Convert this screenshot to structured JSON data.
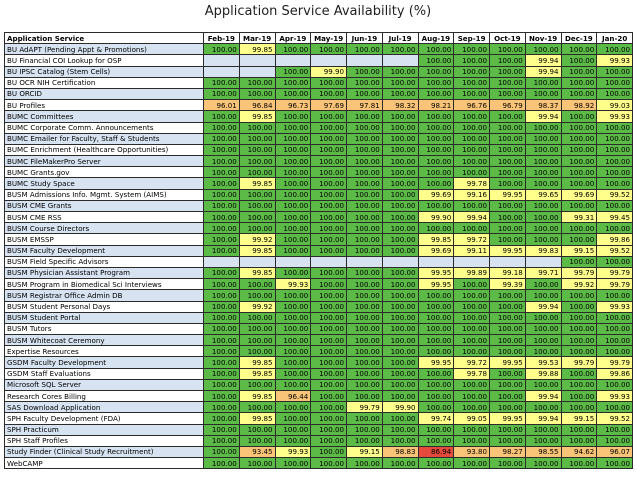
{
  "title": "Application Service Availability (%)",
  "colors": {
    "green": "#5cba47",
    "yellow": "#ffff8c",
    "orange": "#f9c478",
    "red": "#e64a3c",
    "blank": "#d7e3f1"
  },
  "columns": [
    "Application Service",
    "Feb-19",
    "Mar-19",
    "Apr-19",
    "May-19",
    "Jun-19",
    "Jul-19",
    "Aug-19",
    "Sep-19",
    "Oct-19",
    "Nov-19",
    "Dec-19",
    "Jan-20"
  ],
  "rows": [
    {
      "name": "BU AdAPT (Pending Appt & Promotions)",
      "values": [
        "100.00",
        "99.85",
        "100.00",
        "100.00",
        "100.00",
        "100.00",
        "100.00",
        "100.00",
        "100.00",
        "100.00",
        "100.00",
        "100.00"
      ]
    },
    {
      "name": "BU Financial COI Lookup for OSP",
      "values": [
        "",
        "",
        "",
        "",
        "",
        "",
        "100.00",
        "100.00",
        "100.00",
        "99.94",
        "100.00",
        "99.93"
      ]
    },
    {
      "name": "BU IPSC Catalog (Stem Cells)",
      "values": [
        "",
        "",
        "100.00",
        "99.90",
        "100.00",
        "100.00",
        "100.00",
        "100.00",
        "100.00",
        "99.94",
        "100.00",
        "100.00"
      ]
    },
    {
      "name": "BU OCR NIH Certification",
      "values": [
        "100.00",
        "100.00",
        "100.00",
        "100.00",
        "100.00",
        "100.00",
        "100.00",
        "100.00",
        "100.00",
        "100.00",
        "100.00",
        "100.00"
      ]
    },
    {
      "name": "BU ORCID",
      "values": [
        "100.00",
        "100.00",
        "100.00",
        "100.00",
        "100.00",
        "100.00",
        "100.00",
        "100.00",
        "100.00",
        "100.00",
        "100.00",
        "100.00"
      ]
    },
    {
      "name": "BU Profiles",
      "values": [
        "96.01",
        "96.84",
        "96.73",
        "97.69",
        "97.81",
        "98.32",
        "98.21",
        "96.76",
        "96.79",
        "98.37",
        "98.92",
        "99.03"
      ]
    },
    {
      "name": "BUMC Committees",
      "values": [
        "100.00",
        "99.85",
        "100.00",
        "100.00",
        "100.00",
        "100.00",
        "100.00",
        "100.00",
        "100.00",
        "99.94",
        "100.00",
        "99.93"
      ]
    },
    {
      "name": "BUMC Corporate Comm. Announcements",
      "values": [
        "100.00",
        "100.00",
        "100.00",
        "100.00",
        "100.00",
        "100.00",
        "100.00",
        "100.00",
        "100.00",
        "100.00",
        "100.00",
        "100.00"
      ]
    },
    {
      "name": "BUMC Emailer for Faculty, Staff & Students",
      "values": [
        "100.00",
        "100.00",
        "100.00",
        "100.00",
        "100.00",
        "100.00",
        "100.00",
        "100.00",
        "100.00",
        "100.00",
        "100.00",
        "100.00"
      ]
    },
    {
      "name": "BUMC Enrichment (Healthcare Opportunities)",
      "values": [
        "100.00",
        "100.00",
        "100.00",
        "100.00",
        "100.00",
        "100.00",
        "100.00",
        "100.00",
        "100.00",
        "100.00",
        "100.00",
        "100.00"
      ]
    },
    {
      "name": "BUMC FileMakerPro Server",
      "values": [
        "100.00",
        "100.00",
        "100.00",
        "100.00",
        "100.00",
        "100.00",
        "100.00",
        "100.00",
        "100.00",
        "100.00",
        "100.00",
        "100.00"
      ]
    },
    {
      "name": "BUMC Grants.gov",
      "values": [
        "100.00",
        "100.00",
        "100.00",
        "100.00",
        "100.00",
        "100.00",
        "100.00",
        "100.00",
        "100.00",
        "100.00",
        "100.00",
        "100.00"
      ]
    },
    {
      "name": "BUMC Study Space",
      "values": [
        "100.00",
        "99.85",
        "100.00",
        "100.00",
        "100.00",
        "100.00",
        "100.00",
        "99.78",
        "100.00",
        "100.00",
        "100.00",
        "100.00"
      ]
    },
    {
      "name": "BUSM Admissions Info. Mgmt. System (AIMS)",
      "values": [
        "100.00",
        "100.00",
        "100.00",
        "100.00",
        "100.00",
        "100.00",
        "99.69",
        "99.16",
        "99.95",
        "99.65",
        "99.69",
        "99.52"
      ]
    },
    {
      "name": "BUSM CME Grants",
      "values": [
        "100.00",
        "100.00",
        "100.00",
        "100.00",
        "100.00",
        "100.00",
        "100.00",
        "100.00",
        "100.00",
        "100.00",
        "100.00",
        "100.00"
      ]
    },
    {
      "name": "BUSM CME RSS",
      "values": [
        "100.00",
        "100.00",
        "100.00",
        "100.00",
        "100.00",
        "100.00",
        "99.90",
        "99.94",
        "100.00",
        "100.00",
        "99.31",
        "99.45"
      ]
    },
    {
      "name": "BUSM Course Directors",
      "values": [
        "100.00",
        "100.00",
        "100.00",
        "100.00",
        "100.00",
        "100.00",
        "100.00",
        "100.00",
        "100.00",
        "100.00",
        "100.00",
        "100.00"
      ]
    },
    {
      "name": "BUSM EMSSP",
      "values": [
        "100.00",
        "99.92",
        "100.00",
        "100.00",
        "100.00",
        "100.00",
        "99.85",
        "99.72",
        "100.00",
        "100.00",
        "100.00",
        "99.86"
      ]
    },
    {
      "name": "BUSM Faculty Development",
      "values": [
        "100.00",
        "99.85",
        "100.00",
        "100.00",
        "100.00",
        "100.00",
        "99.69",
        "99.11",
        "99.95",
        "99.83",
        "99.15",
        "99.52"
      ]
    },
    {
      "name": "BUSM Field Specific Advisors",
      "values": [
        "",
        "",
        "",
        "",
        "",
        "",
        "",
        "",
        "",
        "",
        "100.00",
        "100.00"
      ]
    },
    {
      "name": "BUSM Physician Assistant Program",
      "values": [
        "100.00",
        "99.85",
        "100.00",
        "100.00",
        "100.00",
        "100.00",
        "99.95",
        "99.89",
        "99.18",
        "99.71",
        "99.79",
        "99.79"
      ]
    },
    {
      "name": "BUSM Program in Biomedical Sci Interviews",
      "values": [
        "100.00",
        "100.00",
        "99.93",
        "100.00",
        "100.00",
        "100.00",
        "99.95",
        "100.00",
        "99.39",
        "100.00",
        "99.92",
        "99.79"
      ]
    },
    {
      "name": "BUSM Registrar Office Admin DB",
      "values": [
        "100.00",
        "100.00",
        "100.00",
        "100.00",
        "100.00",
        "100.00",
        "100.00",
        "100.00",
        "100.00",
        "100.00",
        "100.00",
        "100.00"
      ]
    },
    {
      "name": "BUSM Student Personal Days",
      "values": [
        "100.00",
        "99.92",
        "100.00",
        "100.00",
        "100.00",
        "100.00",
        "100.00",
        "100.00",
        "100.00",
        "99.94",
        "100.00",
        "99.93"
      ]
    },
    {
      "name": "BUSM Student Portal",
      "values": [
        "100.00",
        "100.00",
        "100.00",
        "100.00",
        "100.00",
        "100.00",
        "100.00",
        "100.00",
        "100.00",
        "100.00",
        "100.00",
        "100.00"
      ]
    },
    {
      "name": "BUSM Tutors",
      "values": [
        "100.00",
        "100.00",
        "100.00",
        "100.00",
        "100.00",
        "100.00",
        "100.00",
        "100.00",
        "100.00",
        "100.00",
        "100.00",
        "100.00"
      ]
    },
    {
      "name": "BUSM Whitecoat Ceremony",
      "values": [
        "100.00",
        "100.00",
        "100.00",
        "100.00",
        "100.00",
        "100.00",
        "100.00",
        "100.00",
        "100.00",
        "100.00",
        "100.00",
        "100.00"
      ]
    },
    {
      "name": "Expertise Resources",
      "values": [
        "100.00",
        "100.00",
        "100.00",
        "100.00",
        "100.00",
        "100.00",
        "100.00",
        "100.00",
        "100.00",
        "100.00",
        "100.00",
        "100.00"
      ]
    },
    {
      "name": "GSDM Faculty Development",
      "values": [
        "100.00",
        "99.85",
        "100.00",
        "100.00",
        "100.00",
        "100.00",
        "99.95",
        "99.72",
        "99.95",
        "99.53",
        "99.79",
        "99.79"
      ]
    },
    {
      "name": "GSDM Staff Evaluations",
      "values": [
        "100.00",
        "99.85",
        "100.00",
        "100.00",
        "100.00",
        "100.00",
        "100.00",
        "99.78",
        "100.00",
        "99.88",
        "100.00",
        "99.86"
      ]
    },
    {
      "name": "Microsoft SQL Server",
      "values": [
        "100.00",
        "100.00",
        "100.00",
        "100.00",
        "100.00",
        "100.00",
        "100.00",
        "100.00",
        "100.00",
        "100.00",
        "100.00",
        "100.00"
      ]
    },
    {
      "name": "Research Cores Billing",
      "values": [
        "100.00",
        "99.85",
        "96.44",
        "100.00",
        "100.00",
        "100.00",
        "100.00",
        "100.00",
        "100.00",
        "99.94",
        "100.00",
        "99.93"
      ]
    },
    {
      "name": "SAS Download Application",
      "values": [
        "100.00",
        "100.00",
        "100.00",
        "100.00",
        "99.79",
        "99.90",
        "100.00",
        "100.00",
        "100.00",
        "100.00",
        "100.00",
        "100.00"
      ]
    },
    {
      "name": "SPH Faculty Development (FDA)",
      "values": [
        "100.00",
        "99.85",
        "100.00",
        "100.00",
        "100.00",
        "100.00",
        "99.74",
        "99.05",
        "99.95",
        "99.94",
        "99.15",
        "99.52"
      ]
    },
    {
      "name": "SPH Practicum",
      "values": [
        "100.00",
        "100.00",
        "100.00",
        "100.00",
        "100.00",
        "100.00",
        "100.00",
        "100.00",
        "100.00",
        "100.00",
        "100.00",
        "100.00"
      ]
    },
    {
      "name": "SPH Staff Profiles",
      "values": [
        "100.00",
        "100.00",
        "100.00",
        "100.00",
        "100.00",
        "100.00",
        "100.00",
        "100.00",
        "100.00",
        "100.00",
        "100.00",
        "100.00"
      ]
    },
    {
      "name": "Study Finder (Clinical Study Recruitment)",
      "values": [
        "100.00",
        "93.45",
        "99.93",
        "100.00",
        "99.15",
        "98.83",
        "86.94",
        "93.80",
        "98.27",
        "98.55",
        "94.62",
        "96.07"
      ]
    },
    {
      "name": "WebCAMP",
      "values": [
        "100.00",
        "100.00",
        "100.00",
        "100.00",
        "100.00",
        "100.00",
        "100.00",
        "100.00",
        "100.00",
        "100.00",
        "100.00",
        "100.00"
      ]
    }
  ]
}
